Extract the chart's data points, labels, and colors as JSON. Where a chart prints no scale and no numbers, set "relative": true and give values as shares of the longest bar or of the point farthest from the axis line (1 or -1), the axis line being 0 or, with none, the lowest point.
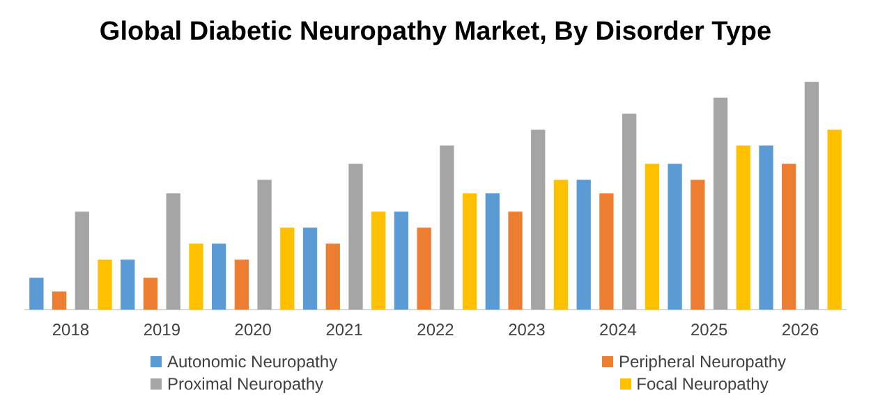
{
  "chart_data": {
    "type": "bar",
    "title": "Global Diabetic Neuropathy Market, By Disorder Type",
    "categories": [
      "2018",
      "2019",
      "2020",
      "2021",
      "2022",
      "2023",
      "2024",
      "2025",
      "2026"
    ],
    "relative": true,
    "grid": false,
    "legend": "bottom",
    "series": [
      {
        "name": "Autonomic Neuropathy",
        "color": "#5b9bd5",
        "values": [
          0.14,
          0.22,
          0.29,
          0.36,
          0.43,
          0.51,
          0.57,
          0.64,
          0.72
        ]
      },
      {
        "name": "Peripheral Neuropathy",
        "color": "#ed7d31",
        "values": [
          0.08,
          0.14,
          0.22,
          0.29,
          0.36,
          0.43,
          0.51,
          0.57,
          0.64
        ]
      },
      {
        "name": "Proximal Neuropathy",
        "color": "#a5a5a5",
        "values": [
          0.43,
          0.51,
          0.57,
          0.64,
          0.72,
          0.79,
          0.86,
          0.93,
          1
        ]
      },
      {
        "name": "Focal Neuropathy",
        "color": "#ffc000",
        "values": [
          0.22,
          0.29,
          0.36,
          0.43,
          0.51,
          0.57,
          0.64,
          0.72,
          0.79
        ]
      }
    ]
  }
}
